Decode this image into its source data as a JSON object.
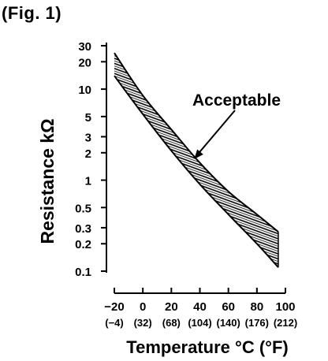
{
  "figure_label": "(Fig. 1)",
  "chart_data": {
    "type": "area",
    "title": "",
    "xlabel": "Temperature °C (°F)",
    "ylabel": "Resistance kΩ",
    "y_scale": "log",
    "xlim": [
      -20,
      100
    ],
    "ylim": [
      0.1,
      30
    ],
    "x_ticks": [
      -20,
      0,
      20,
      40,
      60,
      80,
      100
    ],
    "x_tick_labels": [
      "−20",
      "0",
      "20",
      "40",
      "60",
      "80",
      "100"
    ],
    "x_tick_labels_f": [
      "(−4)",
      "(32)",
      "(68)",
      "(104)",
      "(140)",
      "(176)",
      "(212)"
    ],
    "y_ticks": [
      0.1,
      0.2,
      0.3,
      0.5,
      1,
      2,
      3,
      5,
      10,
      20,
      30
    ],
    "y_tick_labels": [
      "0.1",
      "0.2",
      "0.3",
      "0.5",
      "1",
      "2",
      "3",
      "5",
      "10",
      "20",
      "30"
    ],
    "grid": false,
    "band": {
      "name": "Acceptable",
      "x": [
        -20,
        0,
        20,
        40,
        60,
        80,
        95
      ],
      "upper": [
        25,
        8.5,
        3.6,
        1.55,
        0.75,
        0.42,
        0.27
      ],
      "lower": [
        14,
        5.3,
        2.1,
        0.9,
        0.42,
        0.2,
        0.11
      ]
    },
    "annotation": {
      "text": "Acceptable",
      "points_to": {
        "x": 36,
        "y": 1.7
      }
    }
  }
}
